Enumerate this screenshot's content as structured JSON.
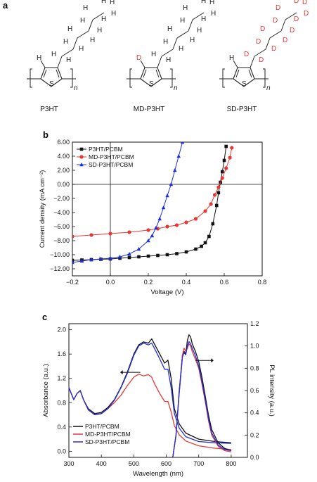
{
  "panels": {
    "a": {
      "label": "a"
    },
    "b": {
      "label": "b"
    },
    "c": {
      "label": "c"
    }
  },
  "molecules": [
    {
      "name": "P3HT",
      "ring_h": "H",
      "chain_atom": "H",
      "subscript": "n",
      "sulfur": "S"
    },
    {
      "name": "MD-P3HT",
      "ring_h": "D",
      "chain_atom": "H",
      "subscript": "n",
      "sulfur": "S"
    },
    {
      "name": "SD-P3HT",
      "ring_h": "H",
      "chain_atom": "D",
      "subscript": "n",
      "sulfur": "S"
    }
  ],
  "colors": {
    "black": "#111111",
    "red": "#e53935",
    "blue": "#1f2fd6",
    "deuterium_red": "#e53935"
  },
  "chart_data": [
    {
      "type": "line",
      "xlabel": "Voltage (V)",
      "ylabel": "Current density (mA cm⁻²)",
      "xlim": [
        -0.2,
        0.8
      ],
      "ylim": [
        -13.0,
        6.0
      ],
      "x_ticks": [
        "−0.2",
        "0.0",
        "0.2",
        "0.4",
        "0.6",
        "0.8"
      ],
      "y_ticks": [
        "6.00",
        "4.00",
        "2.00",
        "0.00",
        "−2.00",
        "−4.00",
        "−6.00",
        "−8.00",
        "−10.00",
        "−12.00"
      ],
      "legend_position": "top-left",
      "series": [
        {
          "name": "P3HT/PCBM",
          "color": "#111111",
          "marker": "square",
          "x": [
            -0.2,
            -0.15,
            -0.1,
            -0.05,
            0.0,
            0.05,
            0.1,
            0.15,
            0.2,
            0.25,
            0.3,
            0.35,
            0.4,
            0.45,
            0.48,
            0.5,
            0.52,
            0.54,
            0.56,
            0.57,
            0.58,
            0.59,
            0.6,
            0.61
          ],
          "y": [
            -10.8,
            -10.75,
            -10.7,
            -10.65,
            -10.6,
            -10.5,
            -10.4,
            -10.3,
            -10.2,
            -10.1,
            -10.0,
            -9.85,
            -9.6,
            -9.2,
            -8.8,
            -8.3,
            -7.4,
            -5.6,
            -3.0,
            -1.2,
            0.3,
            1.8,
            3.4,
            5.4
          ]
        },
        {
          "name": "MD-P3HT/PCBM",
          "color": "#e53935",
          "marker": "circle",
          "x": [
            -0.2,
            -0.1,
            0.0,
            0.1,
            0.2,
            0.25,
            0.3,
            0.35,
            0.4,
            0.45,
            0.5,
            0.53,
            0.55,
            0.57,
            0.59,
            0.61,
            0.63,
            0.64
          ],
          "y": [
            -7.4,
            -7.2,
            -7.0,
            -6.8,
            -6.5,
            -6.3,
            -6.0,
            -5.8,
            -5.4,
            -4.9,
            -3.8,
            -2.8,
            -1.5,
            -0.4,
            0.9,
            2.3,
            3.8,
            5.2
          ]
        },
        {
          "name": "SD-P3HT/PCBM",
          "color": "#1f2fd6",
          "marker": "triangle",
          "x": [
            -0.2,
            -0.15,
            -0.1,
            -0.05,
            0.0,
            0.05,
            0.1,
            0.15,
            0.2,
            0.22,
            0.24,
            0.26,
            0.28,
            0.3,
            0.32,
            0.34,
            0.36,
            0.38
          ],
          "y": [
            -11.1,
            -10.9,
            -10.7,
            -10.6,
            -10.5,
            -10.3,
            -9.9,
            -9.2,
            -8.0,
            -7.3,
            -6.2,
            -4.9,
            -3.3,
            -1.6,
            0.0,
            2.0,
            4.0,
            6.0
          ]
        }
      ]
    },
    {
      "type": "line",
      "xlabel": "Wavelength (nm)",
      "ylabel": "Absorbance (a.u.)",
      "y2label": "PL intensity (a.u.)",
      "xlim": [
        300,
        850
      ],
      "ylim": [
        -0.1,
        2.1
      ],
      "y2lim": [
        0.0,
        1.2
      ],
      "x_ticks": [
        "300",
        "400",
        "500",
        "600",
        "700",
        "800"
      ],
      "y_ticks": [
        "0.0",
        "0.4",
        "0.8",
        "1.2",
        "1.6",
        "2.0"
      ],
      "y2_ticks": [
        "0.0",
        "0.2",
        "0.4",
        "0.6",
        "0.8",
        "1.0",
        "1.2"
      ],
      "legend_position": "bottom-left",
      "series": [
        {
          "name": "P3HT/PCBM",
          "color": "#111111",
          "curve": "absorbance",
          "x": [
            300,
            315,
            325,
            335,
            345,
            360,
            380,
            400,
            420,
            440,
            460,
            480,
            500,
            515,
            530,
            545,
            555,
            565,
            580,
            595,
            605,
            615,
            625,
            640,
            660,
            700,
            750,
            800
          ],
          "y": [
            1.05,
            0.85,
            0.95,
            1.0,
            0.85,
            0.7,
            0.62,
            0.64,
            0.72,
            0.85,
            1.05,
            1.3,
            1.6,
            1.75,
            1.8,
            1.78,
            1.85,
            1.75,
            1.6,
            1.45,
            1.5,
            1.2,
            0.7,
            0.45,
            0.3,
            0.2,
            0.16,
            0.14
          ]
        },
        {
          "name": "MD-P3HT/PCBM",
          "color": "#e53935",
          "curve": "absorbance",
          "x": [
            300,
            315,
            325,
            335,
            345,
            360,
            380,
            400,
            420,
            440,
            460,
            480,
            500,
            515,
            530,
            545,
            555,
            565,
            580,
            595,
            605,
            615,
            625,
            640,
            660,
            700,
            750,
            800
          ],
          "y": [
            1.05,
            0.85,
            0.95,
            1.0,
            0.85,
            0.68,
            0.6,
            0.62,
            0.7,
            0.8,
            0.92,
            1.08,
            1.22,
            1.27,
            1.24,
            1.26,
            1.22,
            1.1,
            0.95,
            0.82,
            0.82,
            0.65,
            0.42,
            0.27,
            0.17,
            0.09,
            0.05,
            0.03
          ]
        },
        {
          "name": "SD-P3HT/PCBM",
          "color": "#1f2fd6",
          "curve": "absorbance",
          "x": [
            300,
            315,
            325,
            335,
            345,
            360,
            380,
            400,
            420,
            440,
            460,
            480,
            500,
            515,
            530,
            545,
            555,
            565,
            580,
            595,
            605,
            615,
            625,
            640,
            660,
            700,
            750,
            800
          ],
          "y": [
            1.05,
            0.85,
            0.95,
            1.0,
            0.85,
            0.68,
            0.6,
            0.62,
            0.7,
            0.84,
            1.04,
            1.28,
            1.58,
            1.73,
            1.78,
            1.75,
            1.78,
            1.68,
            1.52,
            1.35,
            1.35,
            1.05,
            0.62,
            0.38,
            0.24,
            0.16,
            0.14,
            0.13
          ]
        },
        {
          "name": "P3HT/PCBM",
          "color": "#111111",
          "curve": "pl",
          "axis": "y2",
          "x": [
            620,
            630,
            640,
            650,
            655,
            660,
            665,
            670,
            675,
            680,
            690,
            700,
            710,
            720,
            730,
            740,
            760,
            780,
            800
          ],
          "y": [
            0.0,
            0.2,
            0.6,
            0.92,
            0.95,
            0.93,
            1.05,
            1.1,
            1.08,
            1.02,
            0.95,
            0.86,
            0.72,
            0.55,
            0.38,
            0.25,
            0.13,
            0.08,
            0.06
          ]
        },
        {
          "name": "MD-P3HT/PCBM",
          "color": "#e53935",
          "curve": "pl",
          "axis": "y2",
          "x": [
            620,
            630,
            640,
            650,
            655,
            660,
            665,
            670,
            675,
            680,
            690,
            700,
            710,
            720,
            730,
            740,
            760,
            780,
            800
          ],
          "y": [
            0.0,
            0.2,
            0.58,
            0.92,
            0.98,
            0.95,
            0.98,
            1.02,
            1.0,
            0.95,
            0.88,
            0.8,
            0.66,
            0.5,
            0.33,
            0.2,
            0.1,
            0.06,
            0.05
          ]
        },
        {
          "name": "SD-P3HT/PCBM",
          "color": "#1f2fd6",
          "curve": "pl",
          "axis": "y2",
          "x": [
            620,
            630,
            640,
            650,
            655,
            660,
            665,
            670,
            675,
            680,
            690,
            700,
            710,
            720,
            730,
            740,
            760,
            780,
            800
          ],
          "y": [
            0.0,
            0.2,
            0.58,
            0.9,
            0.94,
            0.92,
            1.0,
            1.04,
            1.02,
            0.98,
            0.91,
            0.82,
            0.68,
            0.52,
            0.35,
            0.22,
            0.11,
            0.07,
            0.06
          ]
        }
      ]
    }
  ]
}
